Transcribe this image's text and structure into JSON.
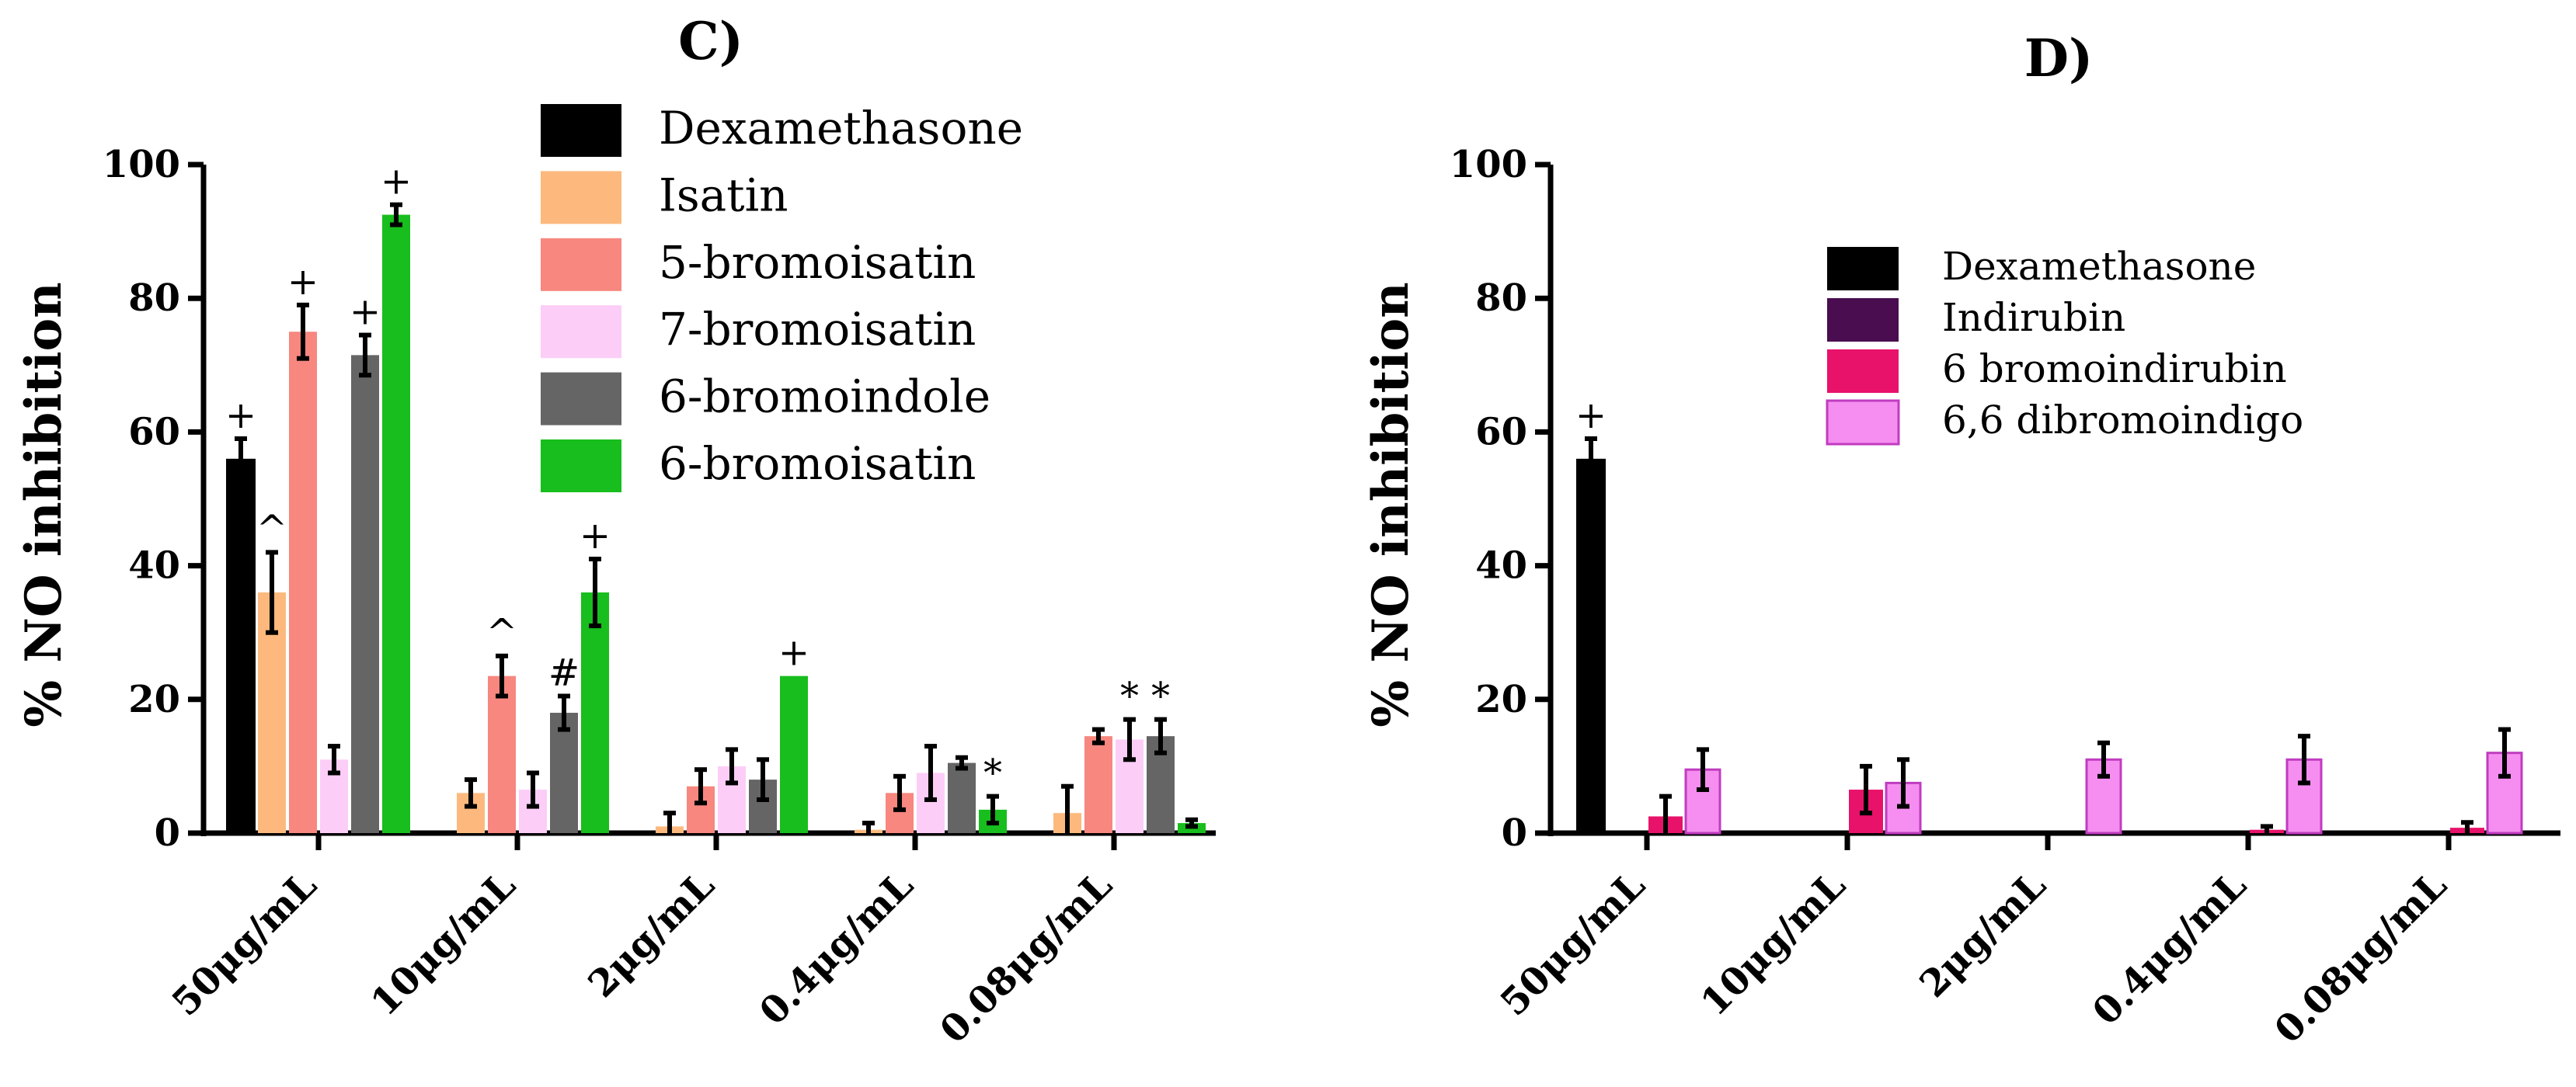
{
  "chart_data": [
    {
      "type": "bar",
      "title": "C)",
      "ylabel": "% NO inhibition",
      "ylim": [
        0,
        100
      ],
      "yticks": [
        "0",
        "20",
        "40",
        "60",
        "80",
        "100"
      ],
      "categories": [
        "50μg/mL",
        "10μg/mL",
        "2μg/mL",
        "0.4μg/mL",
        "0.08μg/mL"
      ],
      "legend_position": "top-right",
      "series": [
        {
          "name": "Dexamethasone",
          "color": "#000000",
          "values": [
            56,
            null,
            null,
            null,
            null
          ],
          "errors": [
            3,
            null,
            null,
            null,
            null
          ],
          "annotations": [
            "+",
            "",
            "",
            "",
            ""
          ]
        },
        {
          "name": "Isatin",
          "color": "#FDB97D",
          "values": [
            36,
            6,
            1,
            0.5,
            3
          ],
          "errors": [
            6,
            2,
            2,
            1,
            4
          ],
          "annotations": [
            "^",
            "",
            "",
            "",
            ""
          ]
        },
        {
          "name": "5-bromoisatin",
          "color": "#F7877F",
          "values": [
            75,
            23.5,
            7,
            6,
            14.5
          ],
          "errors": [
            4,
            3,
            2.5,
            2.5,
            1
          ],
          "annotations": [
            "+",
            "^",
            "",
            "",
            ""
          ]
        },
        {
          "name": "7-bromoisatin",
          "color": "#FCCDF7",
          "values": [
            11,
            6.5,
            10,
            9,
            14
          ],
          "errors": [
            2,
            2.5,
            2.5,
            4,
            3
          ],
          "annotations": [
            "",
            "",
            "",
            "",
            "*"
          ]
        },
        {
          "name": "6-bromoindole",
          "color": "#656565",
          "values": [
            71.5,
            18,
            8,
            10.5,
            14.5
          ],
          "errors": [
            3,
            2.5,
            3,
            0.8,
            2.5
          ],
          "annotations": [
            "+",
            "#",
            "",
            "",
            "*"
          ]
        },
        {
          "name": "6-bromoisatin",
          "color": "#17BE1D",
          "values": [
            92.5,
            36,
            23.5,
            3.5,
            1.5
          ],
          "errors": [
            1.5,
            5,
            null,
            2,
            0.5
          ],
          "annotations": [
            "+",
            "+",
            "+",
            "*",
            ""
          ]
        }
      ]
    },
    {
      "type": "bar",
      "title": "D)",
      "ylabel": "% NO inhibition",
      "ylim": [
        0,
        100
      ],
      "yticks": [
        "0",
        "20",
        "40",
        "60",
        "80",
        "100"
      ],
      "categories": [
        "50μg/mL",
        "10μg/mL",
        "2μg/mL",
        "0.4μg/mL",
        "0.08μg/mL"
      ],
      "legend_position": "top-right",
      "series": [
        {
          "name": "Dexamethasone",
          "color": "#000000",
          "values": [
            56,
            null,
            null,
            null,
            null
          ],
          "errors": [
            3,
            null,
            null,
            null,
            null
          ],
          "annotations": [
            "+",
            "",
            "",
            "",
            ""
          ]
        },
        {
          "name": "Indirubin",
          "color": "#4A0D4F",
          "values": [
            0,
            0,
            0,
            0,
            0
          ],
          "errors": [
            null,
            null,
            null,
            null,
            null
          ],
          "annotations": [
            "",
            "",
            "",
            "",
            ""
          ]
        },
        {
          "name": "6 bromoindirubin",
          "color": "#E8126A",
          "values": [
            2.5,
            6.5,
            0,
            0.5,
            0.8
          ],
          "errors": [
            3,
            3.5,
            null,
            0.5,
            0.8
          ],
          "annotations": [
            "",
            "",
            "",
            "",
            ""
          ]
        },
        {
          "name": "6,6 dibromoindigo",
          "color": "#F58EF0",
          "values": [
            9.5,
            7.5,
            11,
            11,
            12
          ],
          "errors": [
            3,
            3.5,
            2.5,
            3.5,
            3.5
          ],
          "annotations": [
            "",
            "",
            "",
            "",
            ""
          ]
        }
      ]
    }
  ]
}
